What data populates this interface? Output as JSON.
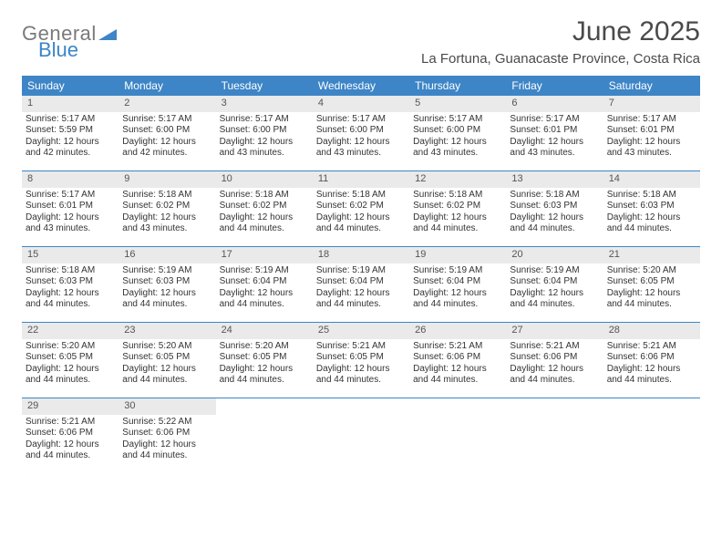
{
  "logo": {
    "part1": "General",
    "part2": "Blue"
  },
  "title": "June 2025",
  "location": "La Fortuna, Guanacaste Province, Costa Rica",
  "colors": {
    "header_bg": "#3d85c6",
    "header_text": "#ffffff",
    "day_num_bg": "#eaeaea",
    "row_border": "#3d85c6",
    "text": "#333333",
    "logo_gray": "#7a7a7a",
    "logo_blue": "#3d85c6",
    "title_color": "#4a4a4a"
  },
  "weekdays": [
    "Sunday",
    "Monday",
    "Tuesday",
    "Wednesday",
    "Thursday",
    "Friday",
    "Saturday"
  ],
  "weeks": [
    [
      {
        "day": "1",
        "sunrise": "Sunrise: 5:17 AM",
        "sunset": "Sunset: 5:59 PM",
        "daylight1": "Daylight: 12 hours",
        "daylight2": "and 42 minutes."
      },
      {
        "day": "2",
        "sunrise": "Sunrise: 5:17 AM",
        "sunset": "Sunset: 6:00 PM",
        "daylight1": "Daylight: 12 hours",
        "daylight2": "and 42 minutes."
      },
      {
        "day": "3",
        "sunrise": "Sunrise: 5:17 AM",
        "sunset": "Sunset: 6:00 PM",
        "daylight1": "Daylight: 12 hours",
        "daylight2": "and 43 minutes."
      },
      {
        "day": "4",
        "sunrise": "Sunrise: 5:17 AM",
        "sunset": "Sunset: 6:00 PM",
        "daylight1": "Daylight: 12 hours",
        "daylight2": "and 43 minutes."
      },
      {
        "day": "5",
        "sunrise": "Sunrise: 5:17 AM",
        "sunset": "Sunset: 6:00 PM",
        "daylight1": "Daylight: 12 hours",
        "daylight2": "and 43 minutes."
      },
      {
        "day": "6",
        "sunrise": "Sunrise: 5:17 AM",
        "sunset": "Sunset: 6:01 PM",
        "daylight1": "Daylight: 12 hours",
        "daylight2": "and 43 minutes."
      },
      {
        "day": "7",
        "sunrise": "Sunrise: 5:17 AM",
        "sunset": "Sunset: 6:01 PM",
        "daylight1": "Daylight: 12 hours",
        "daylight2": "and 43 minutes."
      }
    ],
    [
      {
        "day": "8",
        "sunrise": "Sunrise: 5:17 AM",
        "sunset": "Sunset: 6:01 PM",
        "daylight1": "Daylight: 12 hours",
        "daylight2": "and 43 minutes."
      },
      {
        "day": "9",
        "sunrise": "Sunrise: 5:18 AM",
        "sunset": "Sunset: 6:02 PM",
        "daylight1": "Daylight: 12 hours",
        "daylight2": "and 43 minutes."
      },
      {
        "day": "10",
        "sunrise": "Sunrise: 5:18 AM",
        "sunset": "Sunset: 6:02 PM",
        "daylight1": "Daylight: 12 hours",
        "daylight2": "and 44 minutes."
      },
      {
        "day": "11",
        "sunrise": "Sunrise: 5:18 AM",
        "sunset": "Sunset: 6:02 PM",
        "daylight1": "Daylight: 12 hours",
        "daylight2": "and 44 minutes."
      },
      {
        "day": "12",
        "sunrise": "Sunrise: 5:18 AM",
        "sunset": "Sunset: 6:02 PM",
        "daylight1": "Daylight: 12 hours",
        "daylight2": "and 44 minutes."
      },
      {
        "day": "13",
        "sunrise": "Sunrise: 5:18 AM",
        "sunset": "Sunset: 6:03 PM",
        "daylight1": "Daylight: 12 hours",
        "daylight2": "and 44 minutes."
      },
      {
        "day": "14",
        "sunrise": "Sunrise: 5:18 AM",
        "sunset": "Sunset: 6:03 PM",
        "daylight1": "Daylight: 12 hours",
        "daylight2": "and 44 minutes."
      }
    ],
    [
      {
        "day": "15",
        "sunrise": "Sunrise: 5:18 AM",
        "sunset": "Sunset: 6:03 PM",
        "daylight1": "Daylight: 12 hours",
        "daylight2": "and 44 minutes."
      },
      {
        "day": "16",
        "sunrise": "Sunrise: 5:19 AM",
        "sunset": "Sunset: 6:03 PM",
        "daylight1": "Daylight: 12 hours",
        "daylight2": "and 44 minutes."
      },
      {
        "day": "17",
        "sunrise": "Sunrise: 5:19 AM",
        "sunset": "Sunset: 6:04 PM",
        "daylight1": "Daylight: 12 hours",
        "daylight2": "and 44 minutes."
      },
      {
        "day": "18",
        "sunrise": "Sunrise: 5:19 AM",
        "sunset": "Sunset: 6:04 PM",
        "daylight1": "Daylight: 12 hours",
        "daylight2": "and 44 minutes."
      },
      {
        "day": "19",
        "sunrise": "Sunrise: 5:19 AM",
        "sunset": "Sunset: 6:04 PM",
        "daylight1": "Daylight: 12 hours",
        "daylight2": "and 44 minutes."
      },
      {
        "day": "20",
        "sunrise": "Sunrise: 5:19 AM",
        "sunset": "Sunset: 6:04 PM",
        "daylight1": "Daylight: 12 hours",
        "daylight2": "and 44 minutes."
      },
      {
        "day": "21",
        "sunrise": "Sunrise: 5:20 AM",
        "sunset": "Sunset: 6:05 PM",
        "daylight1": "Daylight: 12 hours",
        "daylight2": "and 44 minutes."
      }
    ],
    [
      {
        "day": "22",
        "sunrise": "Sunrise: 5:20 AM",
        "sunset": "Sunset: 6:05 PM",
        "daylight1": "Daylight: 12 hours",
        "daylight2": "and 44 minutes."
      },
      {
        "day": "23",
        "sunrise": "Sunrise: 5:20 AM",
        "sunset": "Sunset: 6:05 PM",
        "daylight1": "Daylight: 12 hours",
        "daylight2": "and 44 minutes."
      },
      {
        "day": "24",
        "sunrise": "Sunrise: 5:20 AM",
        "sunset": "Sunset: 6:05 PM",
        "daylight1": "Daylight: 12 hours",
        "daylight2": "and 44 minutes."
      },
      {
        "day": "25",
        "sunrise": "Sunrise: 5:21 AM",
        "sunset": "Sunset: 6:05 PM",
        "daylight1": "Daylight: 12 hours",
        "daylight2": "and 44 minutes."
      },
      {
        "day": "26",
        "sunrise": "Sunrise: 5:21 AM",
        "sunset": "Sunset: 6:06 PM",
        "daylight1": "Daylight: 12 hours",
        "daylight2": "and 44 minutes."
      },
      {
        "day": "27",
        "sunrise": "Sunrise: 5:21 AM",
        "sunset": "Sunset: 6:06 PM",
        "daylight1": "Daylight: 12 hours",
        "daylight2": "and 44 minutes."
      },
      {
        "day": "28",
        "sunrise": "Sunrise: 5:21 AM",
        "sunset": "Sunset: 6:06 PM",
        "daylight1": "Daylight: 12 hours",
        "daylight2": "and 44 minutes."
      }
    ],
    [
      {
        "day": "29",
        "sunrise": "Sunrise: 5:21 AM",
        "sunset": "Sunset: 6:06 PM",
        "daylight1": "Daylight: 12 hours",
        "daylight2": "and 44 minutes."
      },
      {
        "day": "30",
        "sunrise": "Sunrise: 5:22 AM",
        "sunset": "Sunset: 6:06 PM",
        "daylight1": "Daylight: 12 hours",
        "daylight2": "and 44 minutes."
      },
      null,
      null,
      null,
      null,
      null
    ]
  ]
}
